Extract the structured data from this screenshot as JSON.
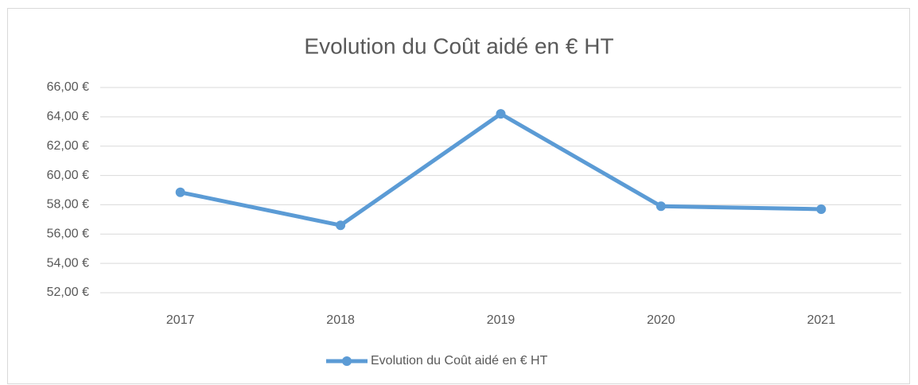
{
  "chart_data": {
    "type": "line",
    "title": "Evolution du Coût aidé en € HT",
    "categories": [
      "2017",
      "2018",
      "2019",
      "2020",
      "2021"
    ],
    "series": [
      {
        "name": "Evolution du Coût aidé en € HT",
        "color": "#5b9bd5",
        "values": [
          58.85,
          56.6,
          64.2,
          57.9,
          57.7
        ]
      }
    ],
    "ylim": [
      52,
      66
    ],
    "yticks": [
      {
        "value": 52,
        "label": "52,00 €"
      },
      {
        "value": 54,
        "label": "54,00 €"
      },
      {
        "value": 56,
        "label": "56,00 €"
      },
      {
        "value": 58,
        "label": "58,00 €"
      },
      {
        "value": 60,
        "label": "60,00 €"
      },
      {
        "value": 62,
        "label": "62,00 €"
      },
      {
        "value": 64,
        "label": "64,00 €"
      },
      {
        "value": 66,
        "label": "66,00 €"
      }
    ],
    "grid": true,
    "legend": "bottom"
  }
}
